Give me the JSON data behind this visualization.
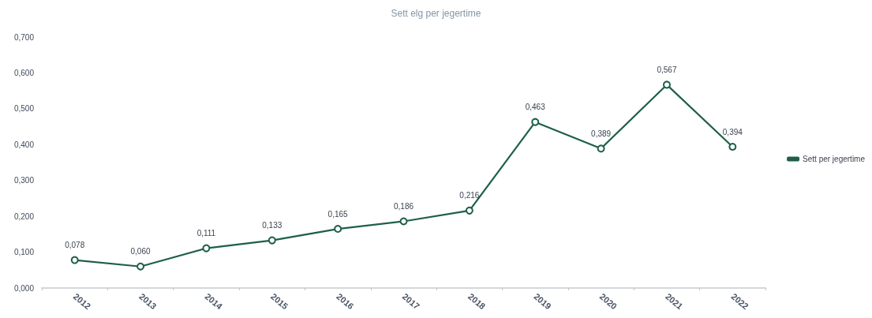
{
  "chart_data": {
    "type": "line",
    "title": "Sett elg per jegertime",
    "categories": [
      "2012",
      "2013",
      "2014",
      "2015",
      "2016",
      "2017",
      "2018",
      "2019",
      "2020",
      "2021",
      "2022"
    ],
    "series": [
      {
        "name": "Sett per jegertime",
        "color": "#1e5f4a",
        "values": [
          0.078,
          0.06,
          0.111,
          0.133,
          0.165,
          0.186,
          0.216,
          0.463,
          0.389,
          0.567,
          0.394
        ],
        "value_labels": [
          "0,078",
          "0,060",
          "0,111",
          "0,133",
          "0,165",
          "0,186",
          "0,216",
          "0,463",
          "0,389",
          "0,567",
          "0,394"
        ]
      }
    ],
    "ylim": [
      0,
      0.7
    ],
    "yticks": [
      {
        "value": 0,
        "label": "0,000"
      },
      {
        "value": 0.1,
        "label": "0,100"
      },
      {
        "value": 0.2,
        "label": "0,200"
      },
      {
        "value": 0.3,
        "label": "0,300"
      },
      {
        "value": 0.4,
        "label": "0,400"
      },
      {
        "value": 0.5,
        "label": "0,500"
      },
      {
        "value": 0.6,
        "label": "0,600"
      },
      {
        "value": 0.7,
        "label": "0,700"
      }
    ],
    "grid": false,
    "legend": "right",
    "marker": "circle",
    "line_style": "solid"
  }
}
